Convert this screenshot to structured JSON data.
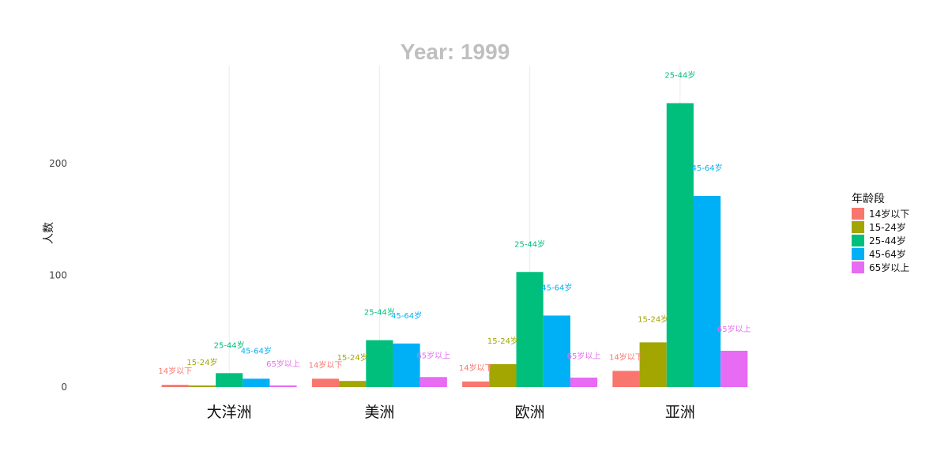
{
  "chart_data": {
    "type": "bar",
    "title": "Year: 1999",
    "xlabel": "",
    "ylabel": "人数",
    "ylim": [
      0,
      285
    ],
    "yticks": [
      0,
      100,
      200
    ],
    "grid": "vertical-only",
    "legend_title": "年龄段",
    "legend_position": "right",
    "categories": [
      "大洋洲",
      "美洲",
      "欧洲",
      "亚洲"
    ],
    "series": [
      {
        "name": "14岁以下",
        "color": "#F8766D",
        "values": [
          2,
          7.5,
          5,
          14.5
        ]
      },
      {
        "name": "15-24岁",
        "color": "#A3A500",
        "values": [
          1.5,
          5.5,
          20.5,
          40
        ]
      },
      {
        "name": "25-44岁",
        "color": "#00BF7D",
        "values": [
          12.5,
          42,
          103,
          254
        ]
      },
      {
        "name": "45-64岁",
        "color": "#00B0F6",
        "values": [
          7.5,
          39,
          64,
          171
        ]
      },
      {
        "name": "65岁以上",
        "color": "#E76BF3",
        "values": [
          1.5,
          9,
          8.5,
          32.5
        ]
      }
    ]
  }
}
